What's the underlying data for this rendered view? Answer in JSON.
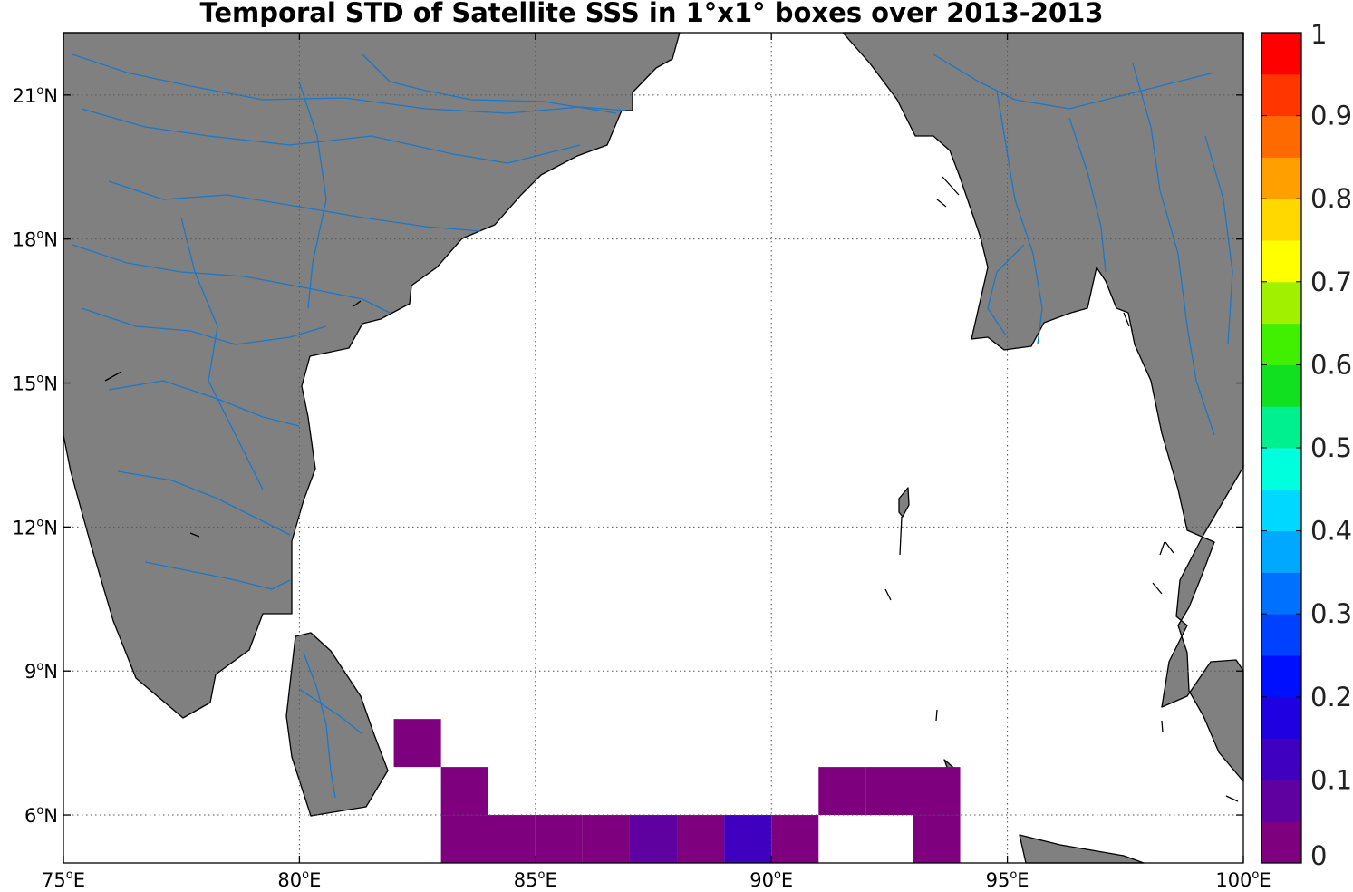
{
  "chart_data": {
    "type": "heatmap",
    "title": "Temporal STD of Satellite SSS in 1°x1° boxes over 2013-2013",
    "xlabel": "",
    "ylabel": "",
    "xlim": [
      75,
      100
    ],
    "ylim": [
      5,
      22.3
    ],
    "x_ticks": [
      {
        "value": 75,
        "deg": "75",
        "sup": "o",
        "hemi": "E"
      },
      {
        "value": 80,
        "deg": "80",
        "sup": "o",
        "hemi": "E"
      },
      {
        "value": 85,
        "deg": "85",
        "sup": "o",
        "hemi": "E"
      },
      {
        "value": 90,
        "deg": "90",
        "sup": "o",
        "hemi": "E"
      },
      {
        "value": 95,
        "deg": "95",
        "sup": "o",
        "hemi": "E"
      },
      {
        "value": 100,
        "deg": "100",
        "sup": "o",
        "hemi": "E"
      }
    ],
    "y_ticks": [
      {
        "value": 6,
        "deg": "6",
        "sup": "o",
        "hemi": "N"
      },
      {
        "value": 9,
        "deg": "9",
        "sup": "o",
        "hemi": "N"
      },
      {
        "value": 12,
        "deg": "12",
        "sup": "o",
        "hemi": "N"
      },
      {
        "value": 15,
        "deg": "15",
        "sup": "o",
        "hemi": "N"
      },
      {
        "value": 18,
        "deg": "18",
        "sup": "o",
        "hemi": "N"
      },
      {
        "value": 21,
        "deg": "21",
        "sup": "o",
        "hemi": "N"
      }
    ],
    "grid": true,
    "colorbar": {
      "min": 0,
      "max": 1,
      "levels": 20,
      "tick_labels": [
        "0",
        "0.1",
        "0.2",
        "0.3",
        "0.4",
        "0.5",
        "0.6",
        "0.7",
        "0.8",
        "0.9",
        "1"
      ],
      "colors": [
        "#7f007f",
        "#5f00a0",
        "#3f00c0",
        "#1f00e0",
        "#0010ff",
        "#0040ff",
        "#0070ff",
        "#00a8ff",
        "#00d8ff",
        "#00ffdc",
        "#00f090",
        "#10e020",
        "#40f000",
        "#a0f000",
        "#ffff00",
        "#ffd800",
        "#ffa000",
        "#ff6a00",
        "#ff3600",
        "#ff0000",
        "#d00000",
        "#8a0000"
      ]
    },
    "cells": [
      {
        "lon": 82,
        "lat": 7,
        "value": 0.01
      },
      {
        "lon": 83,
        "lat": 6,
        "value": 0.01
      },
      {
        "lon": 83,
        "lat": 5,
        "value": 0.01
      },
      {
        "lon": 84,
        "lat": 5,
        "value": 0.01
      },
      {
        "lon": 85,
        "lat": 5,
        "value": 0.01
      },
      {
        "lon": 86,
        "lat": 5,
        "value": 0.01
      },
      {
        "lon": 87,
        "lat": 5,
        "value": 0.07
      },
      {
        "lon": 88,
        "lat": 5,
        "value": 0.01
      },
      {
        "lon": 89,
        "lat": 5,
        "value": 0.13
      },
      {
        "lon": 90,
        "lat": 5,
        "value": 0.01
      },
      {
        "lon": 91,
        "lat": 6,
        "value": 0.01
      },
      {
        "lon": 92,
        "lat": 6,
        "value": 0.01
      },
      {
        "lon": 93,
        "lat": 6,
        "value": 0.01
      },
      {
        "lon": 93,
        "lat": 5,
        "value": 0.01
      }
    ],
    "map": {
      "land_color": "#808080",
      "coast_color": "#000000",
      "river_color": "#1a78c8",
      "ocean_color": "#ffffff"
    }
  }
}
